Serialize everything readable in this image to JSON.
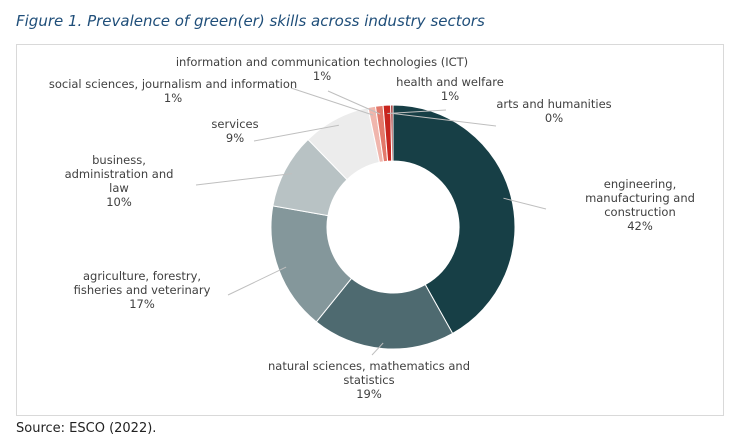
{
  "figure": {
    "title": "Figure 1. Prevalence of green(er) skills across industry sectors",
    "source": "Source: ESCO (2022)."
  },
  "chart_data": {
    "type": "pie",
    "subtype": "donut",
    "title": "Figure 1. Prevalence of green(er) skills across industry sectors",
    "legend": "none",
    "slices": [
      {
        "key": "eng",
        "label": [
          "engineering,",
          "manufacturing and",
          "construction"
        ],
        "pct_label": "42%",
        "value": 42,
        "color": "#173f46"
      },
      {
        "key": "nat",
        "label": [
          "natural sciences, mathematics and",
          "statistics"
        ],
        "pct_label": "19%",
        "value": 19,
        "color": "#4e6a70"
      },
      {
        "key": "agr",
        "label": [
          "agriculture, forestry,",
          "fisheries and veterinary"
        ],
        "pct_label": "17%",
        "value": 17,
        "color": "#84979b"
      },
      {
        "key": "bus",
        "label": [
          "business,",
          "administration and",
          "law"
        ],
        "pct_label": "10%",
        "value": 10,
        "color": "#b8c2c4"
      },
      {
        "key": "srv",
        "label": [
          "services"
        ],
        "pct_label": "9%",
        "value": 9,
        "color": "#ececec"
      },
      {
        "key": "soc",
        "label": [
          "social sciences, journalism and information"
        ],
        "pct_label": "1%",
        "value": 1,
        "color": "#f0b6ad"
      },
      {
        "key": "ict",
        "label": [
          "information and communication technologies (ICT)"
        ],
        "pct_label": "1%",
        "value": 1,
        "color": "#e3786a"
      },
      {
        "key": "hlth",
        "label": [
          "health and welfare"
        ],
        "pct_label": "1%",
        "value": 1,
        "color": "#c8251e"
      },
      {
        "key": "arts",
        "label": [
          "arts and humanities"
        ],
        "pct_label": "0%",
        "value": 0.3,
        "color": "#8f1010"
      }
    ]
  }
}
